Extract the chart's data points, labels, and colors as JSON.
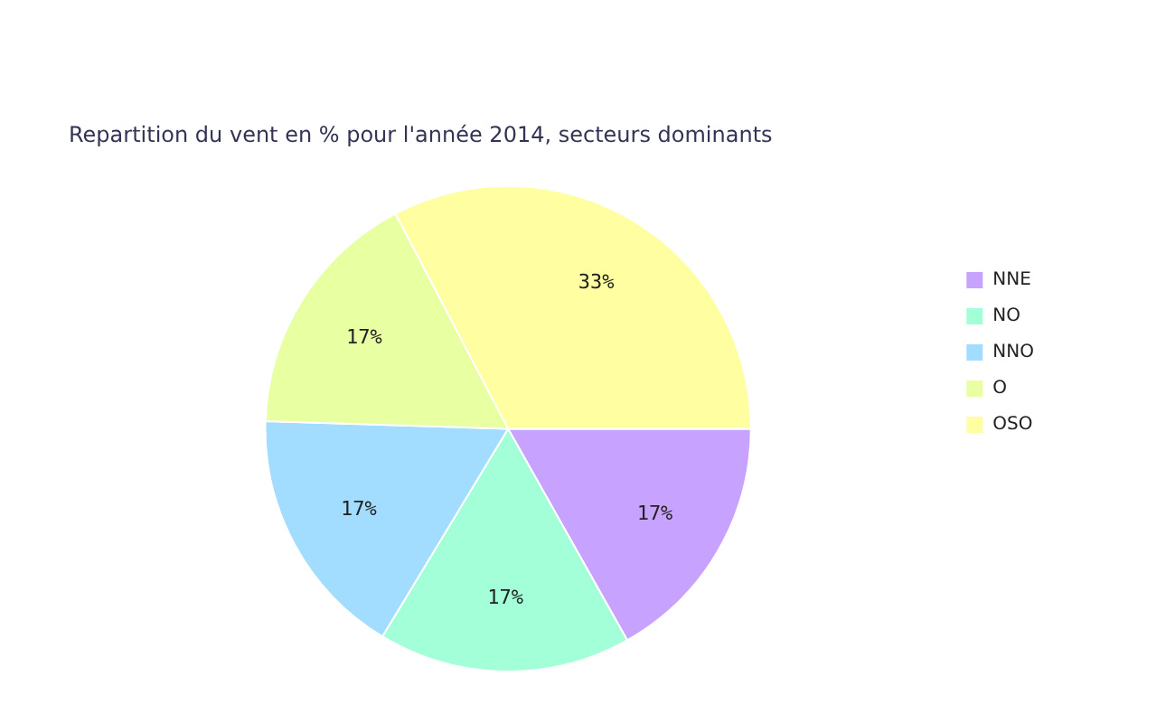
{
  "chart_data": {
    "type": "pie",
    "title": "Repartition du vent en % pour l'année 2014, secteurs dominants",
    "categories": [
      "NNE",
      "NO",
      "NNO",
      "O",
      "OSO"
    ],
    "values": [
      17,
      17,
      17,
      17,
      33
    ],
    "value_labels": [
      "17%",
      "17%",
      "17%",
      "17%",
      "33%"
    ],
    "colors": [
      "#c8a2ff",
      "#a2ffd8",
      "#a2dcff",
      "#e8ffa2",
      "#ffffa2"
    ],
    "legend": "right"
  }
}
